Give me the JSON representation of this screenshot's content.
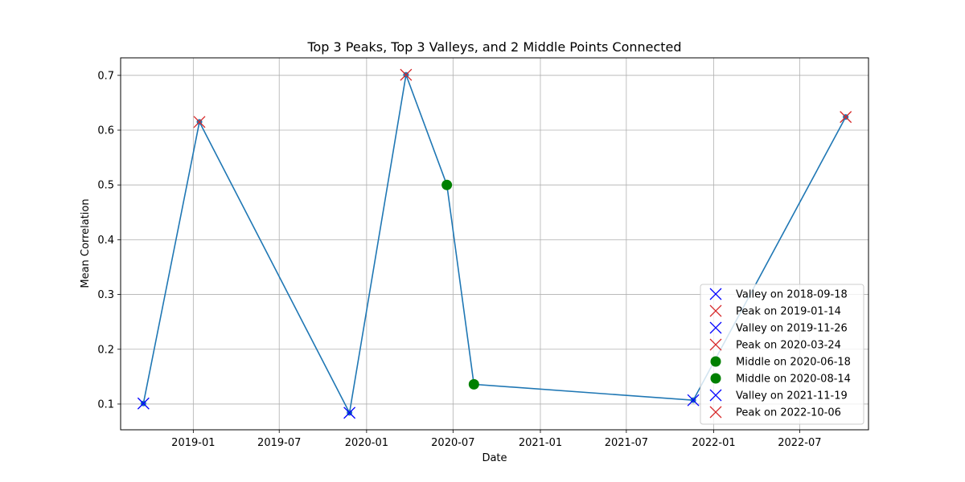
{
  "chart_data": {
    "type": "line",
    "title": "Top 3 Peaks, Top 3 Valleys, and 2 Middle Points Connected",
    "xlabel": "Date",
    "ylabel": "Mean Correlation",
    "grid": true,
    "legend_position": "lower-right",
    "xlim": [
      "2018-08-01",
      "2022-11-23"
    ],
    "ylim": [
      0.053,
      0.732
    ],
    "x_ticks": [
      "2019-01",
      "2019-07",
      "2020-01",
      "2020-07",
      "2021-01",
      "2021-07",
      "2022-01",
      "2022-07"
    ],
    "y_ticks": [
      0.1,
      0.2,
      0.3,
      0.4,
      0.5,
      0.6,
      0.7
    ],
    "colors": {
      "line": "#1f77b4",
      "peak": "#d62728",
      "valley": "#0000ff",
      "middle": "#008000",
      "grid": "#b0b0b0"
    },
    "points": [
      {
        "kind": "valley",
        "date": "2018-09-18",
        "value": 0.101,
        "label": "Valley on 2018-09-18"
      },
      {
        "kind": "peak",
        "date": "2019-01-14",
        "value": 0.615,
        "label": "Peak on 2019-01-14"
      },
      {
        "kind": "valley",
        "date": "2019-11-26",
        "value": 0.084,
        "label": "Valley on 2019-11-26"
      },
      {
        "kind": "peak",
        "date": "2020-03-24",
        "value": 0.701,
        "label": "Peak on 2020-03-24"
      },
      {
        "kind": "middle",
        "date": "2020-06-18",
        "value": 0.5,
        "label": "Middle on 2020-06-18"
      },
      {
        "kind": "middle",
        "date": "2020-08-14",
        "value": 0.136,
        "label": "Middle on 2020-08-14"
      },
      {
        "kind": "valley",
        "date": "2021-11-19",
        "value": 0.107,
        "label": "Valley on 2021-11-19"
      },
      {
        "kind": "peak",
        "date": "2022-10-06",
        "value": 0.624,
        "label": "Peak on 2022-10-06"
      }
    ]
  }
}
